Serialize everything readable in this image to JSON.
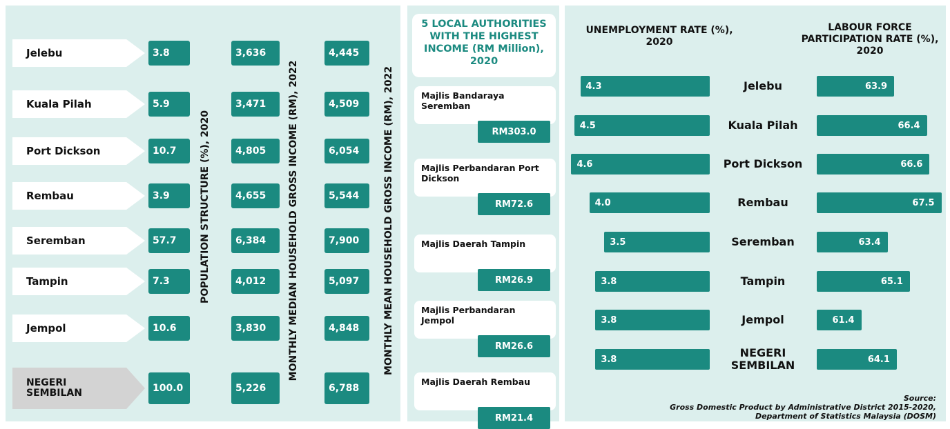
{
  "districts": {
    "population_title": "POPULATION STRUCTURE (%), 2020",
    "median_title": "MONTHLY MEDIAN HOUSEHOLD GROSS INCOME (RM), 2022",
    "mean_title": "MONTHLY MEAN HOUSEHOLD GROSS INCOME (RM), 2022",
    "rows": [
      {
        "name": "Jelebu",
        "population": "3.8",
        "median": "3,636",
        "mean": "4,445"
      },
      {
        "name": "Kuala Pilah",
        "population": "5.9",
        "median": "3,471",
        "mean": "4,509"
      },
      {
        "name": "Port Dickson",
        "population": "10.7",
        "median": "4,805",
        "mean": "6,054"
      },
      {
        "name": "Rembau",
        "population": "3.9",
        "median": "4,655",
        "mean": "5,544"
      },
      {
        "name": "Seremban",
        "population": "57.7",
        "median": "6,384",
        "mean": "7,900"
      },
      {
        "name": "Tampin",
        "population": "7.3",
        "median": "4,012",
        "mean": "5,097"
      },
      {
        "name": "Jempol",
        "population": "10.6",
        "median": "3,830",
        "mean": "4,848"
      },
      {
        "name": "NEGERI SEMBILAN",
        "population": "100.0",
        "median": "5,226",
        "mean": "6,788"
      }
    ]
  },
  "local_authorities": {
    "title": "5 LOCAL AUTHORITIES WITH THE HIGHEST INCOME (RM Million), 2020",
    "items": [
      {
        "name": "Majlis Bandaraya Seremban",
        "value": "RM303.0"
      },
      {
        "name": "Majlis Perbandaran Port Dickson",
        "value": "RM72.6"
      },
      {
        "name": "Majlis Daerah Tampin",
        "value": "RM26.9"
      },
      {
        "name": "Majlis Perbandaran Jempol",
        "value": "RM26.6"
      },
      {
        "name": "Majlis Daerah Rembau",
        "value": "RM21.4"
      }
    ]
  },
  "chart_data": [
    {
      "type": "bar",
      "title": "UNEMPLOYMENT RATE (%), 2020",
      "categories": [
        "Jelebu",
        "Kuala Pilah",
        "Port Dickson",
        "Rembau",
        "Seremban",
        "Tampin",
        "Jempol",
        "NEGERI SEMBILAN"
      ],
      "values": [
        4.3,
        4.5,
        4.6,
        4.0,
        3.5,
        3.8,
        3.8,
        3.8
      ],
      "value_labels": [
        "4.3",
        "4.5",
        "4.6",
        "4.0",
        "3.5",
        "3.8",
        "3.8",
        "3.8"
      ],
      "color": "#1b8a80",
      "xlim": [
        0,
        5
      ]
    },
    {
      "type": "bar",
      "title": "LABOUR FORCE PARTICIPATION RATE (%), 2020",
      "values": [
        63.9,
        66.4,
        66.6,
        67.5,
        63.4,
        65.1,
        61.4,
        64.1
      ],
      "color": "#1b8a80",
      "xlim": [
        58,
        68
      ]
    }
  ],
  "source": {
    "label": "Source:",
    "text": "Gross Domestic Product by Administrative District 2015-2020, Department of Statistics Malaysia (DOSM)"
  }
}
